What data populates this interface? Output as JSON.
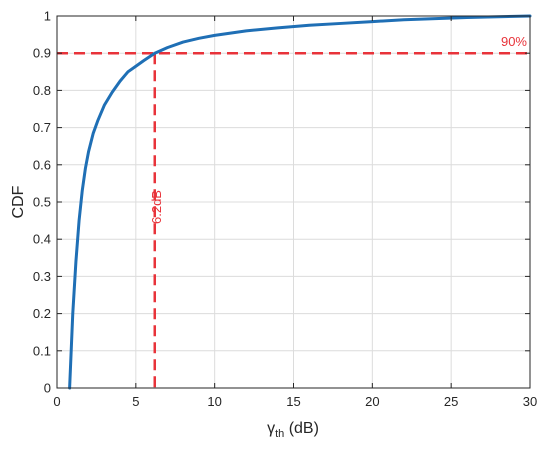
{
  "chart_data": {
    "type": "line",
    "title": "",
    "xlabel": {
      "symbol": "γ",
      "subscript": "th",
      "unit": " (dB)"
    },
    "ylabel": "CDF",
    "xlim": [
      0,
      30
    ],
    "ylim": [
      0,
      1
    ],
    "x_ticks": [
      0,
      5,
      10,
      15,
      20,
      25,
      30
    ],
    "y_ticks": [
      0,
      0.1,
      0.2,
      0.3,
      0.4,
      0.5,
      0.6,
      0.7,
      0.8,
      0.9,
      1
    ],
    "x_tick_labels": [
      "0",
      "5",
      "10",
      "15",
      "20",
      "25",
      "30"
    ],
    "y_tick_labels": [
      "0",
      "0.1",
      "0.2",
      "0.3",
      "0.4",
      "0.5",
      "0.6",
      "0.7",
      "0.8",
      "0.9",
      "1"
    ],
    "grid": true,
    "series": [
      {
        "color": "#1f6fb5",
        "x": [
          0.8,
          0.9,
          1.0,
          1.2,
          1.4,
          1.6,
          1.8,
          2.0,
          2.3,
          2.6,
          3.0,
          3.5,
          4.0,
          4.5,
          5.0,
          5.5,
          6.2,
          7.0,
          8.0,
          9.0,
          10.0,
          12.0,
          14.0,
          16.0,
          18.0,
          20.0,
          22.0,
          24.0,
          26.0,
          28.0,
          30.0
        ],
        "y": [
          0.0,
          0.1,
          0.2,
          0.34,
          0.45,
          0.53,
          0.59,
          0.635,
          0.685,
          0.72,
          0.76,
          0.795,
          0.825,
          0.85,
          0.865,
          0.88,
          0.9,
          0.915,
          0.93,
          0.94,
          0.948,
          0.96,
          0.968,
          0.975,
          0.98,
          0.985,
          0.99,
          0.993,
          0.996,
          0.998,
          1.0
        ]
      }
    ],
    "reference_lines": {
      "color": "#e8333a",
      "horizontal": {
        "y": 0.9,
        "label": "90%"
      },
      "vertical": {
        "x": 6.2,
        "label": "6.2dB"
      }
    }
  }
}
